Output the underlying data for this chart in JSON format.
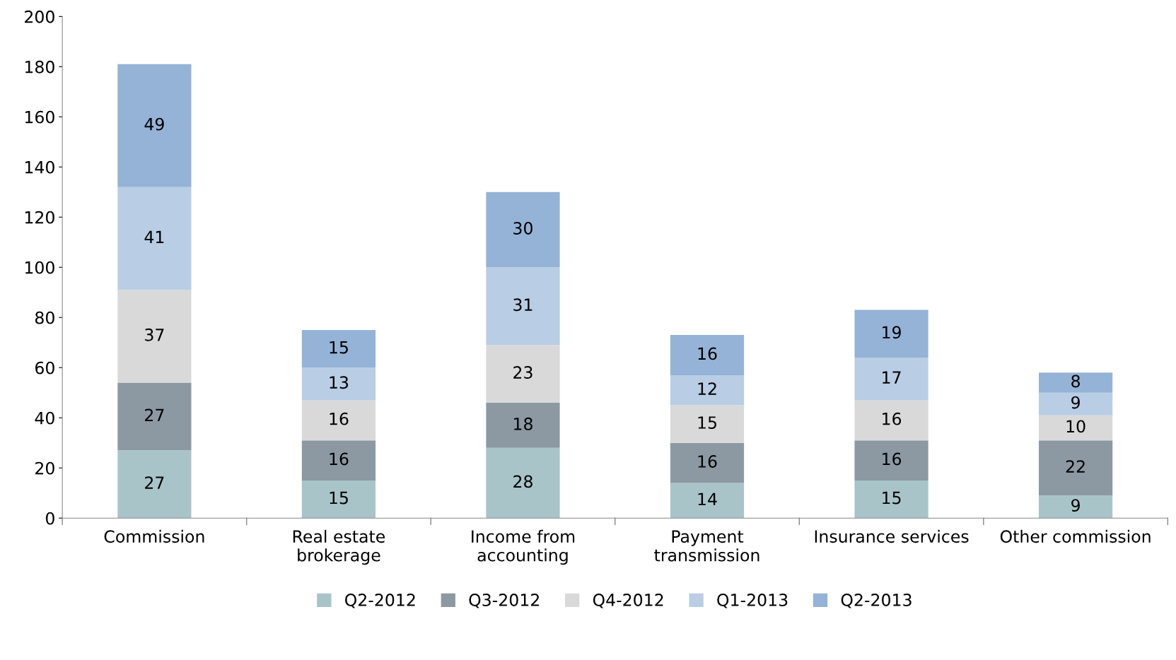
{
  "chart_data": {
    "type": "bar",
    "stacked": true,
    "data_labels": true,
    "grid": false,
    "legend": "bottom",
    "categories": [
      "Commission",
      "Real estate\nbrokerage",
      "Income from\naccounting",
      "Payment\ntransmission",
      "Insurance services",
      "Other commission"
    ],
    "ylim": [
      0,
      200
    ],
    "yticks": [
      0,
      20,
      40,
      60,
      80,
      100,
      120,
      140,
      160,
      180,
      200
    ],
    "series": [
      {
        "name": "Q2-2012",
        "color": "#a9c4c9",
        "values": [
          27,
          15,
          28,
          14,
          15,
          9
        ]
      },
      {
        "name": "Q3-2012",
        "color": "#8c99a3",
        "values": [
          27,
          16,
          18,
          16,
          16,
          22
        ]
      },
      {
        "name": "Q4-2012",
        "color": "#d9d9d9",
        "values": [
          37,
          16,
          23,
          15,
          16,
          10
        ]
      },
      {
        "name": "Q1-2013",
        "color": "#b9cde5",
        "values": [
          41,
          13,
          31,
          12,
          17,
          9
        ]
      },
      {
        "name": "Q2-2013",
        "color": "#95b3d7",
        "values": [
          49,
          15,
          30,
          16,
          19,
          8
        ]
      }
    ]
  }
}
